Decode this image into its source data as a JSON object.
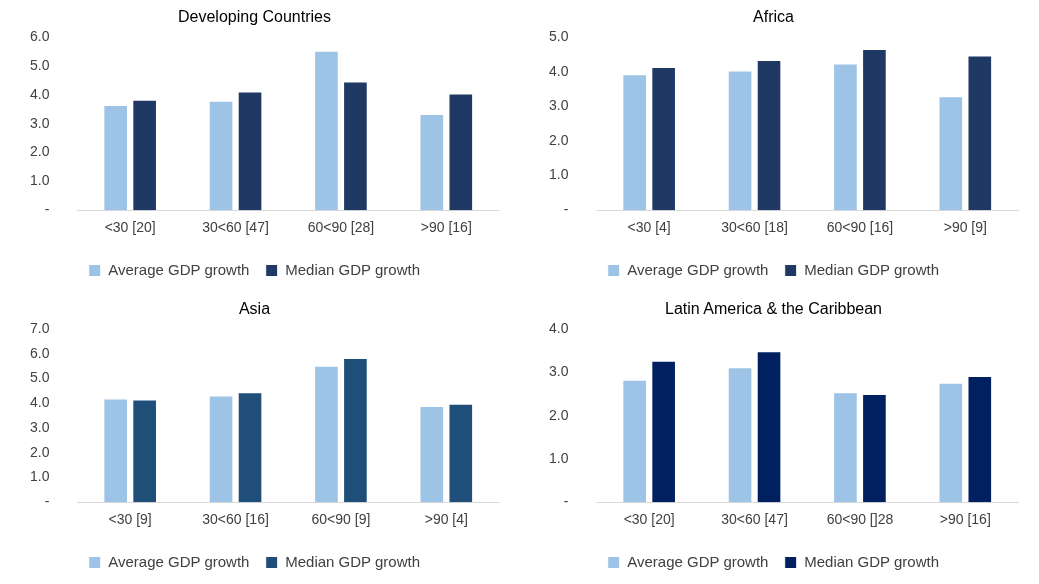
{
  "chart_data": [
    {
      "type": "bar",
      "title": "Developing Countries",
      "categories": [
        "<30 [20]",
        "30<60 [47]",
        "60<90 [28]",
        ">90 [16]"
      ],
      "series": [
        {
          "name": "Average GDP growth",
          "color": "#9dc3e6",
          "values": [
            3.65,
            3.8,
            5.53,
            3.34
          ]
        },
        {
          "name": "Median GDP growth",
          "color": "#203864",
          "values": [
            3.83,
            4.12,
            4.46,
            4.05
          ]
        }
      ],
      "ylim": [
        0,
        6
      ],
      "yticks": [
        {
          "value": 0,
          "label": "-"
        },
        {
          "value": 1,
          "label": "1.0"
        },
        {
          "value": 2,
          "label": "2.0"
        },
        {
          "value": 3,
          "label": "3.0"
        },
        {
          "value": 4,
          "label": "4.0"
        },
        {
          "value": 5,
          "label": "5.0"
        },
        {
          "value": 6,
          "label": "6.0"
        }
      ],
      "grid": false,
      "legend": "bottom"
    },
    {
      "type": "bar",
      "title": "Africa",
      "categories": [
        "<30 [4]",
        "30<60 [18]",
        "60<90 [16]",
        ">90 [9]"
      ],
      "series": [
        {
          "name": "Average GDP growth",
          "color": "#9dc3e6",
          "values": [
            3.93,
            4.04,
            4.24,
            3.29
          ]
        },
        {
          "name": "Median GDP growth",
          "color": "#203864",
          "values": [
            4.14,
            4.34,
            4.66,
            4.47
          ]
        }
      ],
      "ylim": [
        0,
        5
      ],
      "yticks": [
        {
          "value": 0,
          "label": "-"
        },
        {
          "value": 1,
          "label": "1.0"
        },
        {
          "value": 2,
          "label": "2.0"
        },
        {
          "value": 3,
          "label": "3.0"
        },
        {
          "value": 4,
          "label": "4.0"
        },
        {
          "value": 5,
          "label": "5.0"
        }
      ],
      "grid": false,
      "legend": "bottom"
    },
    {
      "type": "bar",
      "title": "Asia",
      "categories": [
        "<30 [9]",
        "30<60 [16]",
        "60<90 [9]",
        ">90 [4]"
      ],
      "series": [
        {
          "name": "Average GDP growth",
          "color": "#9dc3e6",
          "values": [
            4.2,
            4.32,
            5.52,
            3.89
          ]
        },
        {
          "name": "Median GDP growth",
          "color": "#1f4e79",
          "values": [
            4.16,
            4.45,
            5.83,
            3.98
          ]
        }
      ],
      "ylim": [
        0,
        7
      ],
      "yticks": [
        {
          "value": 0,
          "label": "-"
        },
        {
          "value": 1,
          "label": "1.0"
        },
        {
          "value": 2,
          "label": "2.0"
        },
        {
          "value": 3,
          "label": "3.0"
        },
        {
          "value": 4,
          "label": "4.0"
        },
        {
          "value": 5,
          "label": "5.0"
        },
        {
          "value": 6,
          "label": "6.0"
        },
        {
          "value": 7,
          "label": "7.0"
        }
      ],
      "grid": false,
      "legend": "bottom"
    },
    {
      "type": "bar",
      "title": "Latin America & the Caribbean",
      "categories": [
        "<30 [20]",
        "30<60 [47]",
        "60<90 []28",
        ">90 [16]"
      ],
      "series": [
        {
          "name": "Average GDP growth",
          "color": "#9dc3e6",
          "values": [
            2.83,
            3.12,
            2.54,
            2.76
          ]
        },
        {
          "name": "Median GDP growth",
          "color": "#002060",
          "values": [
            3.27,
            3.49,
            2.5,
            2.92
          ]
        }
      ],
      "ylim": [
        0,
        4
      ],
      "yticks": [
        {
          "value": 0,
          "label": "-"
        },
        {
          "value": 1,
          "label": "1.0"
        },
        {
          "value": 2,
          "label": "2.0"
        },
        {
          "value": 3,
          "label": "3.0"
        },
        {
          "value": 4,
          "label": "4.0"
        }
      ],
      "grid": false,
      "legend": "bottom"
    }
  ]
}
